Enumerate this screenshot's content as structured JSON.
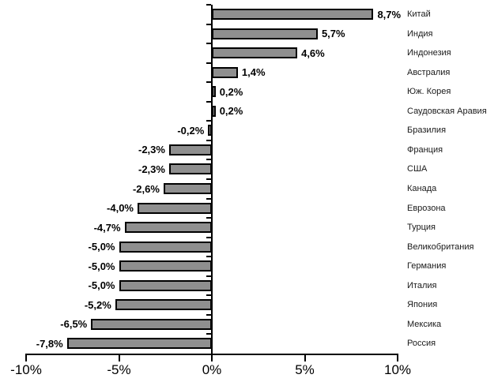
{
  "chart_data": {
    "type": "bar",
    "orientation": "horizontal",
    "title": "",
    "xlabel": "",
    "ylabel": "",
    "xlim": [
      -10,
      10
    ],
    "x_ticks": [
      -10,
      -5,
      0,
      5,
      10
    ],
    "x_tick_labels": [
      "-10%",
      "-5%",
      "0%",
      "5%",
      "10%"
    ],
    "grid": false,
    "legend": null,
    "bar_color": "#8f8f8f",
    "bar_border_color": "#000000",
    "axis_color": "#000000",
    "categories": [
      "Китай",
      "Индия",
      "Индонезия",
      "Австралия",
      "Юж. Корея",
      "Саудовская Аравия",
      "Бразилия",
      "Франция",
      "США",
      "Канада",
      "Еврозона",
      "Турция",
      "Великобритания",
      "Германия",
      "Италия",
      "Япония",
      "Мексика",
      "Россия"
    ],
    "values": [
      8.7,
      5.7,
      4.6,
      1.4,
      0.2,
      0.2,
      -0.2,
      -2.3,
      -2.3,
      -2.6,
      -4.0,
      -4.7,
      -5.0,
      -5.0,
      -5.0,
      -5.2,
      -6.5,
      -7.8
    ],
    "value_labels": [
      "8,7%",
      "5,7%",
      "4,6%",
      "1,4%",
      "0,2%",
      "0,2%",
      "-0,2%",
      "-2,3%",
      "-2,3%",
      "-2,6%",
      "-4,0%",
      "-4,7%",
      "-5,0%",
      "-5,0%",
      "-5,0%",
      "-5,2%",
      "-6,5%",
      "-7,8%"
    ]
  }
}
